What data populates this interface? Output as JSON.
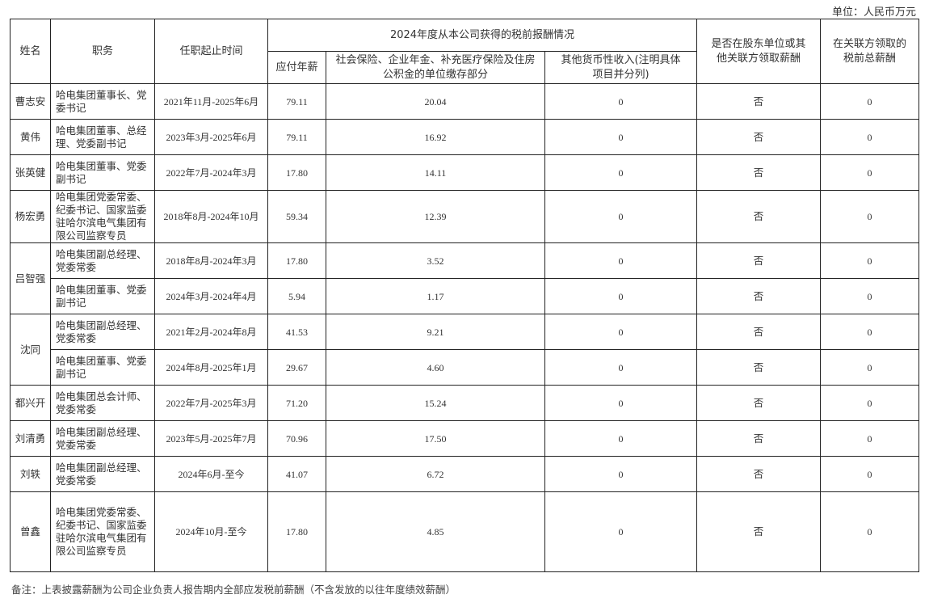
{
  "unit_label": "单位：人民币万元",
  "headers": {
    "name": "姓名",
    "position": "职务",
    "term": "任职起止时间",
    "group": "2024年度从本公司获得的税前报酬情况",
    "salary": "应付年薪",
    "insurance": "社会保险、企业年金、补充医疗保险及住房公积金的单位缴存部分",
    "other": "其他货币性收入(注明具体项目并分列)",
    "shareholder": "是否在股东单位或其他关联方领取薪酬",
    "related_total": "在关联方领取的税前总薪酬"
  },
  "people": [
    {
      "name": "曹志安",
      "roles": [
        {
          "position": "哈电集团董事长、党委书记",
          "term": "2021年11月-2025年6月",
          "salary": "79.11",
          "insurance": "20.04",
          "other": "0",
          "shareholder": "否",
          "related_total": "0"
        }
      ]
    },
    {
      "name": "黄伟",
      "roles": [
        {
          "position": "哈电集团董事、总经理、党委副书记",
          "term": "2023年3月-2025年6月",
          "salary": "79.11",
          "insurance": "16.92",
          "other": "0",
          "shareholder": "否",
          "related_total": "0"
        }
      ]
    },
    {
      "name": "张英健",
      "roles": [
        {
          "position": "哈电集团董事、党委副书记",
          "term": "2022年7月-2024年3月",
          "salary": "17.80",
          "insurance": "14.11",
          "other": "0",
          "shareholder": "否",
          "related_total": "0"
        }
      ]
    },
    {
      "name": "杨宏勇",
      "roles": [
        {
          "position": "哈电集团党委常委、纪委书记、国家监委驻哈尔滨电气集团有限公司监察专员",
          "term": "2018年8月-2024年10月",
          "salary": "59.34",
          "insurance": "12.39",
          "other": "0",
          "shareholder": "否",
          "related_total": "0"
        }
      ]
    },
    {
      "name": "吕智强",
      "roles": [
        {
          "position": "哈电集团副总经理、党委常委",
          "term": "2018年8月-2024年3月",
          "salary": "17.80",
          "insurance": "3.52",
          "other": "0",
          "shareholder": "否",
          "related_total": "0"
        },
        {
          "position": "哈电集团董事、党委副书记",
          "term": "2024年3月-2024年4月",
          "salary": "5.94",
          "insurance": "1.17",
          "other": "0",
          "shareholder": "否",
          "related_total": "0"
        }
      ]
    },
    {
      "name": "沈同",
      "roles": [
        {
          "position": "哈电集团副总经理、党委常委",
          "term": "2021年2月-2024年8月",
          "salary": "41.53",
          "insurance": "9.21",
          "other": "0",
          "shareholder": "否",
          "related_total": "0"
        },
        {
          "position": "哈电集团董事、党委副书记",
          "term": "2024年8月-2025年1月",
          "salary": "29.67",
          "insurance": "4.60",
          "other": "0",
          "shareholder": "否",
          "related_total": "0"
        }
      ]
    },
    {
      "name": "都兴开",
      "roles": [
        {
          "position": "哈电集团总会计师、党委常委",
          "term": "2022年7月-2025年3月",
          "salary": "71.20",
          "insurance": "15.24",
          "other": "0",
          "shareholder": "否",
          "related_total": "0"
        }
      ]
    },
    {
      "name": "刘清勇",
      "roles": [
        {
          "position": "哈电集团副总经理、党委常委",
          "term": "2023年5月-2025年7月",
          "salary": "70.96",
          "insurance": "17.50",
          "other": "0",
          "shareholder": "否",
          "related_total": "0"
        }
      ]
    },
    {
      "name": "刘轶",
      "roles": [
        {
          "position": "哈电集团副总经理、党委常委",
          "term": "2024年6月-至今",
          "salary": "41.07",
          "insurance": "6.72",
          "other": "0",
          "shareholder": "否",
          "related_total": "0"
        }
      ]
    },
    {
      "name": "曾鑫",
      "roles": [
        {
          "position": "哈电集团党委常委、纪委书记、国家监委驻哈尔滨电气集团有限公司监察专员",
          "term": "2024年10月-至今",
          "salary": "17.80",
          "insurance": "4.85",
          "other": "0",
          "shareholder": "否",
          "related_total": "0"
        }
      ]
    }
  ],
  "note": "备注：上表披露薪酬为公司企业负责人报告期内全部应发税前薪酬（不含发放的以往年度绩效薪酬）"
}
